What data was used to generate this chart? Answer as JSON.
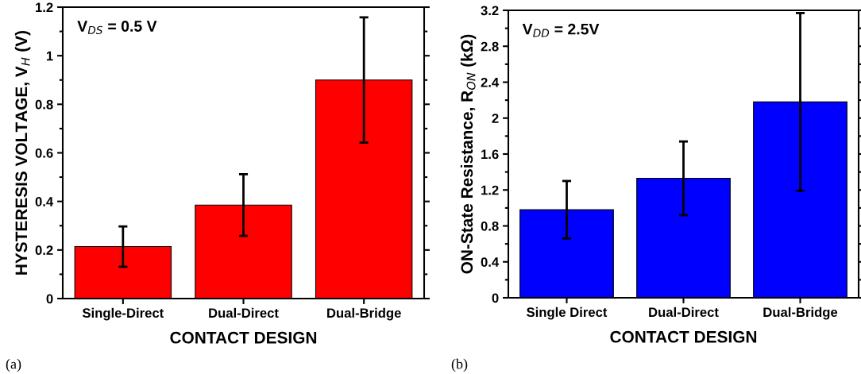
{
  "chart_data": [
    {
      "type": "bar",
      "categories": [
        "Single-Direct",
        "Dual-Direct",
        "Dual-Bridge"
      ],
      "values": [
        0.214,
        0.385,
        0.9
      ],
      "errors": [
        0.083,
        0.127,
        0.258
      ],
      "color": "#ff0000",
      "xlabel": "CONTACT DESIGN",
      "ylabel": "HYSTERESIS VOLTAGE, V$_{H}$ (V)",
      "ylim": [
        0,
        1.2
      ],
      "yticks": [
        0,
        0.2,
        0.4,
        0.6,
        0.8,
        1,
        1.2
      ],
      "annotations": [
        "V$_{DS}$ = 0.5 V",
        "(a)"
      ]
    },
    {
      "type": "bar",
      "categories": [
        "Single Direct",
        "Dual-Direct",
        "Dual-Bridge"
      ],
      "values": [
        0.98,
        1.33,
        2.18
      ],
      "errors": [
        0.32,
        0.41,
        0.99
      ],
      "color": "#0000ff",
      "xlabel": "CONTACT DESIGN",
      "ylabel": "ON-State Resistance, R$_{ON}$ (kΩ)",
      "ylim": [
        0,
        3.2
      ],
      "yticks": [
        0,
        0.4,
        0.8,
        1.2,
        1.6,
        2,
        2.4,
        2.8,
        3.2
      ],
      "annotations": [
        "V$_{DD}$ = 2.5V",
        "(b)"
      ]
    }
  ]
}
